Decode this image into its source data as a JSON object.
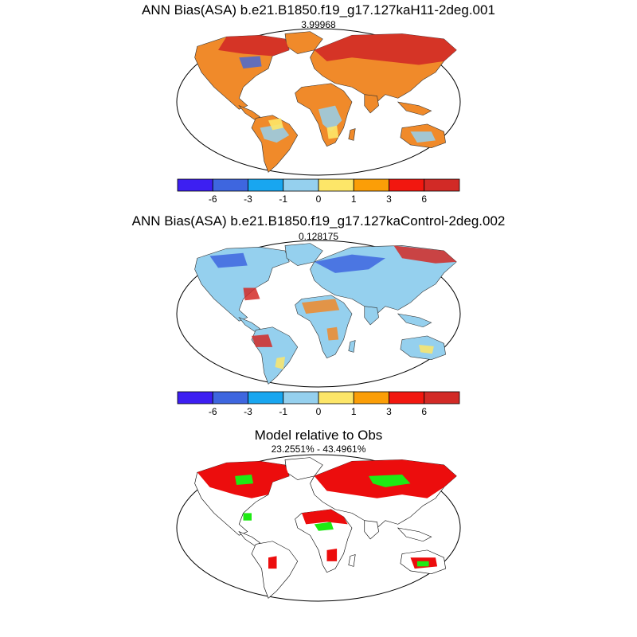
{
  "panels": [
    {
      "title": "ANN Bias(ASA) b.e21.B1850.f19_g17.127kaH11-2deg.001",
      "subtitle": "3.99968"
    },
    {
      "title": "ANN Bias(ASA) b.e21.B1850.f19_g17.127kaControl-2deg.002",
      "subtitle": "0.128175"
    },
    {
      "title": "Model relative to Obs",
      "subtitle": "23.2551% - 43.4961%"
    }
  ],
  "colorbar": {
    "colors": [
      "#3d1ff2",
      "#3e66df",
      "#18a6f0",
      "#95d0ee",
      "#fde668",
      "#fb9e07",
      "#f2170f",
      "#d22a26"
    ],
    "tick_labels": [
      "-6",
      "-3",
      "-1",
      "0",
      "1",
      "3",
      "6"
    ]
  },
  "comparison_colors": {
    "better": "#1eea13",
    "worse": "#ec0d0d"
  }
}
